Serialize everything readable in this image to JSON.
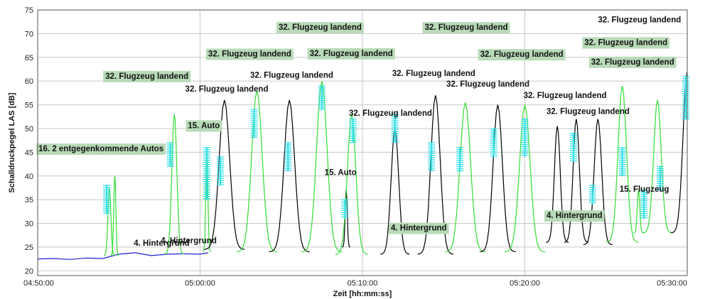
{
  "chart_data": {
    "type": "line",
    "xlabel": "Zeit [hh:mm:ss]",
    "ylabel": "Schalldruckpegel LAS [dB]",
    "ylim": [
      19,
      75
    ],
    "y_ticks": [
      20,
      25,
      30,
      35,
      40,
      45,
      50,
      55,
      60,
      65,
      70,
      75
    ],
    "x_range": [
      "04:50:00",
      "05:30:00"
    ],
    "x_tick_labels": [
      "04:50:00",
      "05:00:00",
      "05:10:00",
      "05:20:00",
      "05:30:00"
    ],
    "grid": true,
    "colors": {
      "Hintergrund": "#1f1fd0",
      "Flugzeug": "#000000",
      "Auto": "#33dd33",
      "Marker": "#33e0e8",
      "label_box": "#b8dab8",
      "grid": "#c8c8c8"
    },
    "series": [
      {
        "color_key": "Hintergrund",
        "points": [
          [
            "04:50:00",
            22.5
          ],
          [
            "04:51:00",
            22.6
          ],
          [
            "04:52:00",
            22.4
          ],
          [
            "04:53:00",
            22.7
          ],
          [
            "04:54:00",
            22.6
          ],
          [
            "04:55:00",
            23.5
          ],
          [
            "04:56:00",
            23.8
          ],
          [
            "04:57:00",
            23.2
          ],
          [
            "04:58:00",
            23.5
          ],
          [
            "04:59:00",
            23.6
          ],
          [
            "05:00:00",
            23.5
          ],
          [
            "05:00:30",
            23.8
          ]
        ]
      }
    ],
    "peaks": [
      {
        "t": "04:54:25",
        "h": 37.5,
        "w": 7,
        "base": 23.2,
        "color_key": "Auto"
      },
      {
        "t": "04:54:45",
        "h": 40,
        "w": 5,
        "base": 23.2,
        "color_key": "Auto"
      },
      {
        "t": "04:58:25",
        "h": 53,
        "w": 12,
        "base": 23.5,
        "color_key": "Auto"
      },
      {
        "t": "05:00:25",
        "h": 46,
        "w": 5,
        "base": 24,
        "color_key": "Auto"
      },
      {
        "t": "05:01:30",
        "h": 56,
        "w": 25,
        "base": 24.5,
        "color_key": "Flugzeug"
      },
      {
        "t": "05:03:30",
        "h": 58,
        "w": 25,
        "base": 24,
        "color_key": "Auto"
      },
      {
        "t": "05:05:30",
        "h": 56,
        "w": 25,
        "base": 24,
        "color_key": "Flugzeug"
      },
      {
        "t": "05:07:30",
        "h": 60,
        "w": 25,
        "base": 24,
        "color_key": "Auto"
      },
      {
        "t": "05:09:00",
        "h": 37,
        "w": 5,
        "base": 25,
        "color_key": "Flugzeug"
      },
      {
        "t": "05:09:20",
        "h": 53,
        "w": 20,
        "base": 23.5,
        "color_key": "Auto"
      },
      {
        "t": "05:12:00",
        "h": 50,
        "w": 18,
        "base": 23.5,
        "color_key": "Flugzeug"
      },
      {
        "t": "05:14:30",
        "h": 57,
        "w": 22,
        "base": 23.5,
        "color_key": "Flugzeug"
      },
      {
        "t": "05:16:20",
        "h": 55.5,
        "w": 25,
        "base": 24,
        "color_key": "Auto"
      },
      {
        "t": "05:18:20",
        "h": 55,
        "w": 22,
        "base": 24,
        "color_key": "Flugzeug"
      },
      {
        "t": "05:20:00",
        "h": 55,
        "w": 25,
        "base": 24,
        "color_key": "Auto"
      },
      {
        "t": "05:22:00",
        "h": 50.5,
        "w": 14,
        "base": 26,
        "color_key": "Flugzeug"
      },
      {
        "t": "05:23:10",
        "h": 52,
        "w": 15,
        "base": 26,
        "color_key": "Flugzeug"
      },
      {
        "t": "05:24:30",
        "h": 52,
        "w": 18,
        "base": 25.5,
        "color_key": "Flugzeug"
      },
      {
        "t": "05:26:00",
        "h": 59,
        "w": 20,
        "base": 26,
        "color_key": "Auto"
      },
      {
        "t": "05:27:00",
        "h": 37,
        "w": 6,
        "base": 28,
        "color_key": "Auto"
      },
      {
        "t": "05:28:10",
        "h": 56,
        "w": 18,
        "base": 28,
        "color_key": "Auto"
      },
      {
        "t": "05:30:00",
        "h": 62,
        "w": 20,
        "base": 28,
        "color_key": "Flugzeug"
      }
    ],
    "markers": [
      {
        "t": "04:54:15",
        "y1": 32,
        "y2": 38
      },
      {
        "t": "04:58:10",
        "y1": 42,
        "y2": 47
      },
      {
        "t": "05:00:25",
        "y1": 35,
        "y2": 46
      },
      {
        "t": "05:01:15",
        "y1": 38,
        "y2": 44
      },
      {
        "t": "05:03:20",
        "y1": 48,
        "y2": 54
      },
      {
        "t": "05:05:25",
        "y1": 41,
        "y2": 47
      },
      {
        "t": "05:07:30",
        "y1": 54,
        "y2": 59
      },
      {
        "t": "05:08:55",
        "y1": 31,
        "y2": 35
      },
      {
        "t": "05:09:25",
        "y1": 47,
        "y2": 52
      },
      {
        "t": "05:12:00",
        "y1": 47,
        "y2": 53
      },
      {
        "t": "05:14:15",
        "y1": 41,
        "y2": 47
      },
      {
        "t": "05:16:00",
        "y1": 41,
        "y2": 46
      },
      {
        "t": "05:18:05",
        "y1": 44,
        "y2": 50
      },
      {
        "t": "05:20:00",
        "y1": 44,
        "y2": 52
      },
      {
        "t": "05:23:00",
        "y1": 43,
        "y2": 49
      },
      {
        "t": "05:24:10",
        "y1": 34,
        "y2": 38
      },
      {
        "t": "05:26:00",
        "y1": 40,
        "y2": 46
      },
      {
        "t": "05:27:20",
        "y1": 31,
        "y2": 37
      },
      {
        "t": "05:28:20",
        "y1": 37,
        "y2": 42
      },
      {
        "t": "05:29:55",
        "y1": 52,
        "y2": 61
      }
    ],
    "annotations": [
      {
        "text": "16.  2 entgegenkommende Autos",
        "t": "04:50:03",
        "y": 45.2,
        "boxed": true
      },
      {
        "text": "4.  Hintergrund",
        "t": "04:55:55",
        "y": 25.3,
        "boxed": false
      },
      {
        "text": "4.  Hintergrund",
        "t": "04:57:35",
        "y": 25.8,
        "boxed": false
      },
      {
        "text": "32.  Flugzeug landend",
        "t": "04:54:10",
        "y": 60.5,
        "boxed": true
      },
      {
        "text": "32.  Flugzeug landend",
        "t": "04:59:05",
        "y": 57.8,
        "boxed": false
      },
      {
        "text": "15.  Auto",
        "t": "04:59:15",
        "y": 50.1,
        "boxed": true
      },
      {
        "text": "32.  Flugzeug landend",
        "t": "05:00:30",
        "y": 65.2,
        "boxed": true
      },
      {
        "text": "32.  Flugzeug landend",
        "t": "05:03:05",
        "y": 60.7,
        "boxed": false
      },
      {
        "text": "32.  Flugzeug landend",
        "t": "05:04:50",
        "y": 70.8,
        "boxed": true
      },
      {
        "text": "32.  Flugzeug landend",
        "t": "05:06:45",
        "y": 65.3,
        "boxed": true
      },
      {
        "text": "15.  Auto",
        "t": "05:07:40",
        "y": 40.2,
        "boxed": false
      },
      {
        "text": "32.  Flugzeug landend",
        "t": "05:09:10",
        "y": 52.7,
        "boxed": false
      },
      {
        "text": "32.  Flugzeug landend",
        "t": "05:11:50",
        "y": 61.1,
        "boxed": false
      },
      {
        "text": "4.  Hintergrund",
        "t": "05:11:45",
        "y": 28.5,
        "boxed": true
      },
      {
        "text": "32.  Flugzeug landend",
        "t": "05:13:50",
        "y": 70.8,
        "boxed": true
      },
      {
        "text": "32.  Flugzeug landend",
        "t": "05:15:10",
        "y": 58.8,
        "boxed": false
      },
      {
        "text": "32.  Flugzeug landend",
        "t": "05:17:15",
        "y": 65.1,
        "boxed": true
      },
      {
        "text": "32.  Flugzeug landend",
        "t": "05:19:55",
        "y": 56.4,
        "boxed": false
      },
      {
        "text": "32.  Flugzeug landend",
        "t": "05:21:20",
        "y": 53.1,
        "boxed": false
      },
      {
        "text": "4.  Hintergrund",
        "t": "05:21:20",
        "y": 31.1,
        "boxed": true
      },
      {
        "text": "32.  Flugzeug landend",
        "t": "05:24:30",
        "y": 72.4,
        "boxed": false
      },
      {
        "text": "32.  Flugzeug landend",
        "t": "05:23:40",
        "y": 67.6,
        "boxed": true
      },
      {
        "text": "32.  Flugzeug landend",
        "t": "05:24:05",
        "y": 63.5,
        "boxed": true
      },
      {
        "text": "15.  Flugzeug",
        "t": "05:25:50",
        "y": 36.7,
        "boxed": false
      }
    ]
  }
}
